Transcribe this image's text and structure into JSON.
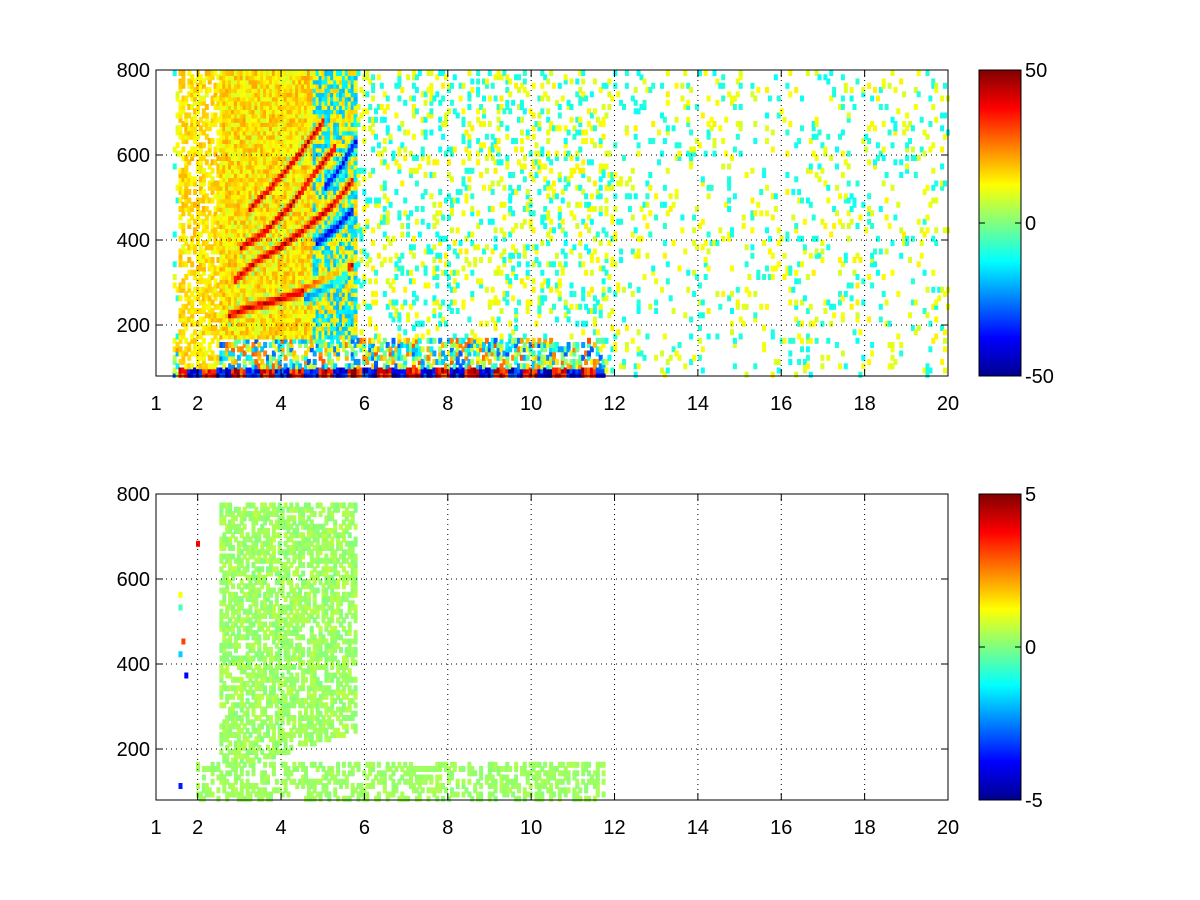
{
  "chart_data": [
    {
      "type": "heatmap",
      "title": "",
      "xlabel": "",
      "ylabel": "",
      "xlim": [
        1,
        20
      ],
      "ylim": [
        80,
        800
      ],
      "x_ticks": [
        1,
        2,
        4,
        6,
        8,
        10,
        12,
        14,
        16,
        18,
        20
      ],
      "y_ticks": [
        200,
        400,
        600,
        800
      ],
      "grid": true,
      "colormap": "jet",
      "colorbar": {
        "clim": [
          -50,
          50
        ],
        "ticks": [
          50,
          0,
          -50
        ]
      },
      "features": [
        {
          "kind": "ridge",
          "sign": "positive",
          "points": [
            [
              2.7,
              220
            ],
            [
              3.2,
              240
            ],
            [
              3.8,
              255
            ],
            [
              4.4,
              275
            ],
            [
              5.0,
              300
            ],
            [
              5.7,
              340
            ]
          ]
        },
        {
          "kind": "ridge",
          "sign": "positive",
          "points": [
            [
              2.8,
              300
            ],
            [
              3.4,
              350
            ],
            [
              4.0,
              385
            ],
            [
              4.6,
              430
            ],
            [
              5.2,
              480
            ],
            [
              5.7,
              540
            ]
          ]
        },
        {
          "kind": "ridge",
          "sign": "positive",
          "points": [
            [
              3.0,
              380
            ],
            [
              3.6,
              420
            ],
            [
              4.2,
              480
            ],
            [
              4.8,
              560
            ],
            [
              5.3,
              620
            ]
          ]
        },
        {
          "kind": "ridge",
          "sign": "positive",
          "points": [
            [
              3.2,
              470
            ],
            [
              3.8,
              530
            ],
            [
              4.4,
              600
            ],
            [
              5.0,
              680
            ]
          ]
        },
        {
          "kind": "ridge",
          "sign": "negative",
          "points": [
            [
              4.5,
              265
            ],
            [
              5.0,
              290
            ],
            [
              5.6,
              330
            ]
          ]
        },
        {
          "kind": "ridge",
          "sign": "negative",
          "points": [
            [
              4.8,
              390
            ],
            [
              5.3,
              430
            ],
            [
              5.7,
              470
            ]
          ]
        },
        {
          "kind": "ridge",
          "sign": "negative",
          "points": [
            [
              5.0,
              520
            ],
            [
              5.4,
              570
            ],
            [
              5.8,
              640
            ]
          ]
        },
        {
          "kind": "band",
          "x": [
            1.5,
            11.7
          ],
          "y": [
            80,
            100
          ],
          "note": "strong alternating +/- values"
        }
      ]
    },
    {
      "type": "heatmap",
      "title": "",
      "xlabel": "",
      "ylabel": "",
      "xlim": [
        1,
        20
      ],
      "ylim": [
        80,
        800
      ],
      "x_ticks": [
        1,
        2,
        4,
        6,
        8,
        10,
        12,
        14,
        16,
        18,
        20
      ],
      "y_ticks": [
        200,
        400,
        600,
        800
      ],
      "grid": true,
      "colormap": "jet",
      "colorbar": {
        "clim": [
          -5,
          5
        ],
        "ticks": [
          5,
          0,
          -5
        ]
      },
      "features": [
        {
          "kind": "region",
          "x": [
            2.5,
            5.8
          ],
          "y": [
            160,
            780
          ],
          "value_approx": 0.3
        },
        {
          "kind": "band",
          "x": [
            1.5,
            11.7
          ],
          "y": [
            80,
            170
          ],
          "value_approx": 0.3
        }
      ]
    }
  ]
}
